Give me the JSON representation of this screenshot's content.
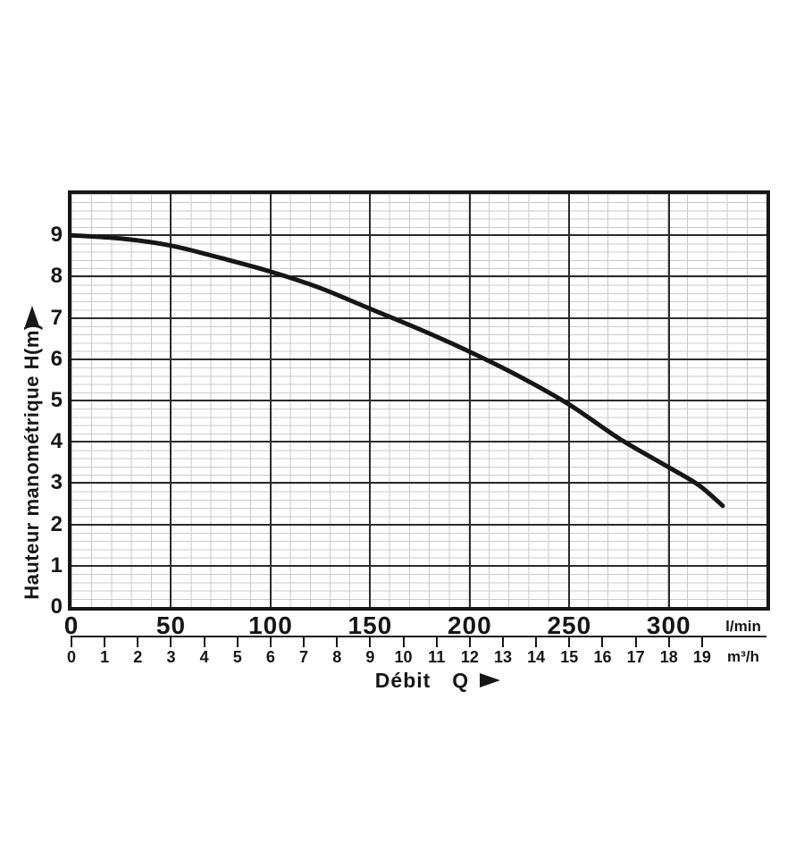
{
  "colors": {
    "ink": "#161616",
    "major_grid": "#2b2b2b",
    "minor_grid": "#c9c9c9",
    "background": "#ffffff"
  },
  "labels": {
    "ylabel": "Hauteur manométrique H(m)",
    "xlabel_main": "Débit",
    "xlabel_symbol": "Q",
    "unit_primary": "l/min",
    "unit_secondary": "m³/h"
  },
  "chart_data": {
    "type": "line",
    "title": "",
    "ylabel": "Hauteur manométrique H(m)",
    "xlabel": "Débit Q",
    "grid": {
      "major": true,
      "minor": true
    },
    "legend": "none",
    "y_axis": {
      "label": "H (m)",
      "min": 0,
      "max": 10,
      "ticks": [
        0,
        1,
        2,
        3,
        4,
        5,
        6,
        7,
        8,
        9
      ]
    },
    "x_axis_primary": {
      "unit": "l/min",
      "min": 0,
      "max": 349,
      "ticks": [
        0,
        50,
        100,
        150,
        200,
        250,
        300
      ]
    },
    "x_axis_secondary": {
      "unit": "m³/h",
      "lmin_per_unit": 16.6667,
      "ticks": [
        0,
        1,
        2,
        3,
        4,
        5,
        6,
        7,
        8,
        9,
        10,
        11,
        12,
        13,
        14,
        15,
        16,
        17,
        18,
        19
      ]
    },
    "series": [
      {
        "name": "pump-head-curve",
        "x_lmin": [
          0,
          25,
          50,
          75,
          100,
          125,
          150,
          175,
          200,
          225,
          250,
          275,
          300,
          315,
          327
        ],
        "h_m": [
          9.0,
          8.92,
          8.75,
          8.45,
          8.12,
          7.72,
          7.22,
          6.72,
          6.18,
          5.58,
          4.9,
          4.08,
          3.38,
          2.95,
          2.45
        ]
      }
    ]
  }
}
